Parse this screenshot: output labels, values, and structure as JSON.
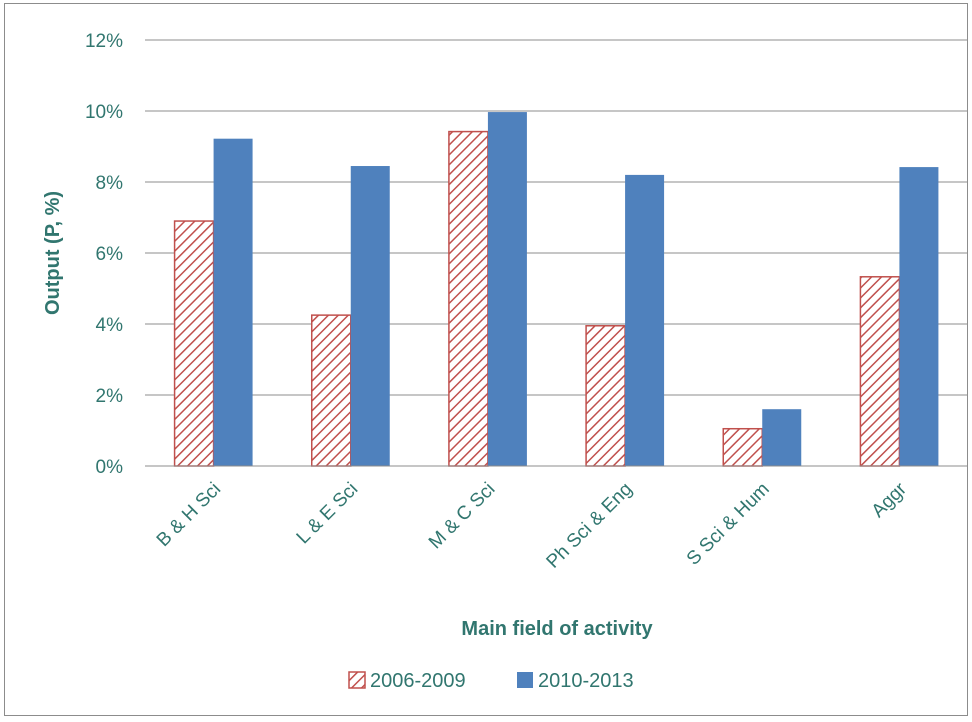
{
  "chart_data": {
    "type": "bar",
    "title": "",
    "xlabel": "Main field of activity",
    "ylabel": "Output (P, %)",
    "categories": [
      "B & H Sci",
      "L & E Sci",
      "M & C Sci",
      "Ph Sci & Eng",
      "S Sci & Hum",
      "Aggr"
    ],
    "series": [
      {
        "name": "2006-2009",
        "values": [
          6.9,
          4.25,
          9.42,
          3.95,
          1.05,
          5.33
        ],
        "color": "#c0504d",
        "pattern": "diagonal-hatch"
      },
      {
        "name": "2010-2013",
        "values": [
          9.22,
          8.45,
          9.97,
          8.2,
          1.6,
          8.42
        ],
        "color": "#4f81bd",
        "pattern": "solid"
      }
    ],
    "ylim": [
      0,
      12
    ],
    "yticks": [
      "0%",
      "2%",
      "4%",
      "6%",
      "8%",
      "10%",
      "12%"
    ],
    "grid": true,
    "legend": "bottom",
    "text_color": "#31766f"
  }
}
